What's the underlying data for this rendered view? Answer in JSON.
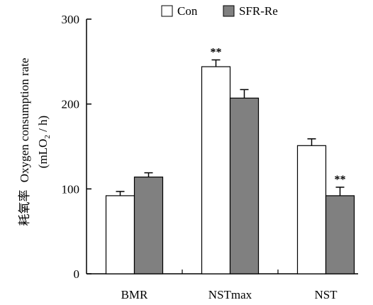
{
  "chart_data": {
    "type": "bar",
    "categories": [
      "BMR",
      "NSTmax",
      "NST"
    ],
    "series": [
      {
        "name": "Con",
        "values": [
          92,
          244,
          151
        ],
        "errors": [
          5,
          8,
          8
        ],
        "color": "#ffffff"
      },
      {
        "name": "SFR-Re",
        "values": [
          114,
          207,
          92
        ],
        "errors": [
          5,
          10,
          10
        ],
        "color": "#808080"
      }
    ],
    "annotations": [
      "",
      "**",
      "",
      "",
      "",
      "**"
    ],
    "ylabel_cn": "耗氧率",
    "ylabel_en": "Oxygen consumption rate",
    "ylabel_unit_prefix": "(mLO",
    "ylabel_unit_sub": "2",
    "ylabel_unit_suffix": " / h)",
    "yticks": [
      0,
      100,
      200,
      300
    ],
    "ylim": [
      0,
      300
    ],
    "legend_position": "top"
  }
}
